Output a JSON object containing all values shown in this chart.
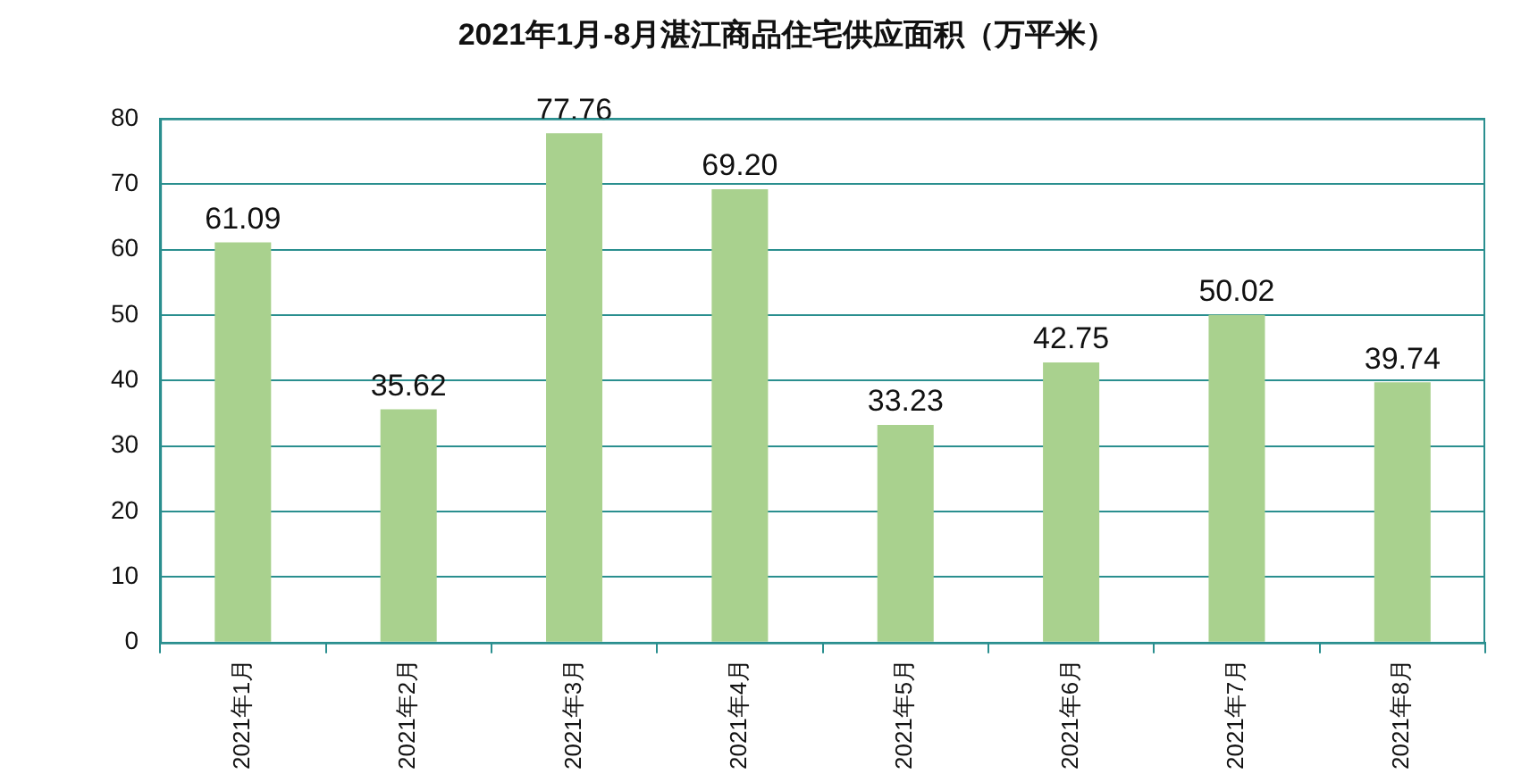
{
  "chart_data": {
    "type": "bar",
    "title": "2021年1月-8月湛江商品住宅供应面积（万平米）",
    "categories": [
      "2021年1月",
      "2021年2月",
      "2021年3月",
      "2021年4月",
      "2021年5月",
      "2021年6月",
      "2021年7月",
      "2021年8月"
    ],
    "values": [
      61.09,
      35.62,
      77.76,
      69.2,
      33.23,
      42.75,
      50.02,
      39.74
    ],
    "value_labels": [
      "61.09",
      "35.62",
      "77.76",
      "69.20",
      "33.23",
      "42.75",
      "50.02",
      "39.74"
    ],
    "color": "#a9d18e",
    "ylim": [
      0,
      80
    ],
    "yticks": [
      0,
      10,
      20,
      30,
      40,
      50,
      60,
      70,
      80
    ],
    "grid": "y",
    "legend": false
  }
}
